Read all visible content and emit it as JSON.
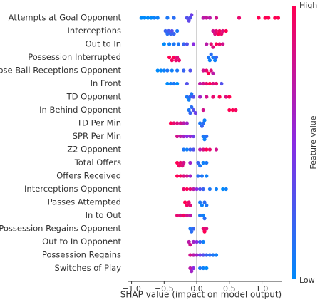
{
  "chart_data": {
    "type": "beeswarm",
    "xlabel": "SHAP value (impact on model output)",
    "xlim": [
      -1.05,
      1.3
    ],
    "xticks": [
      {
        "value": -1.0,
        "label": "−1.0"
      },
      {
        "value": -0.5,
        "label": "−0.5"
      },
      {
        "value": 0.0,
        "label": "0.0"
      },
      0.5,
      {
        "value": 1.0,
        "label": "1.0"
      }
    ],
    "colormap": [
      "#008afb",
      "#8a2be2",
      "#ff0052"
    ],
    "colorbar": {
      "high": "High",
      "low": "Low",
      "label": "Feature value"
    },
    "series": [
      {
        "name": "Attempts at Goal Opponent",
        "values": [
          -0.85,
          -0.8,
          -0.75,
          -0.7,
          -0.65,
          -0.6,
          -0.45,
          -0.35,
          -0.15,
          -0.12,
          -0.1,
          -0.08,
          0.1,
          0.15,
          0.2,
          0.3,
          0.65,
          0.95,
          1.05,
          1.1,
          1.2,
          1.25
        ],
        "feature_values": [
          0,
          0,
          0,
          0,
          0.05,
          0.05,
          0.1,
          0.15,
          0.3,
          0.35,
          0.3,
          0.4,
          0.7,
          0.75,
          0.7,
          0.8,
          0.9,
          1,
          1,
          1,
          1,
          1
        ]
      },
      {
        "name": "Interceptions",
        "values": [
          -0.48,
          -0.45,
          -0.43,
          -0.4,
          -0.38,
          -0.35,
          -0.3,
          0.25,
          0.28,
          0.3,
          0.33,
          0.35,
          0.38,
          0.4,
          0.45
        ],
        "feature_values": [
          0.2,
          0.15,
          0.25,
          0.2,
          0.3,
          0.2,
          0.1,
          0.8,
          0.85,
          0.9,
          1,
          0.95,
          0.9,
          0.85,
          1
        ]
      },
      {
        "name": "Out to In",
        "values": [
          -0.5,
          -0.42,
          -0.35,
          -0.28,
          -0.2,
          -0.15,
          -0.05,
          0.15,
          0.22,
          0.25,
          0.3,
          0.35,
          0.4
        ],
        "feature_values": [
          0,
          0.05,
          0.1,
          0.1,
          0.2,
          0.3,
          0.5,
          0.7,
          0.9,
          0.85,
          1,
          0.9,
          0.8
        ]
      },
      {
        "name": "Possession Interrupted",
        "values": [
          -0.42,
          -0.38,
          -0.35,
          -0.32,
          -0.3,
          -0.27,
          0.18,
          0.2,
          0.22,
          0.25,
          0.28,
          0.3
        ],
        "feature_values": [
          1,
          0.95,
          1,
          0.9,
          0.85,
          0.9,
          0.1,
          0.05,
          0.15,
          0.1,
          0.05,
          0.2
        ]
      },
      {
        "name": "Loose Ball Receptions Opponent",
        "values": [
          -0.6,
          -0.55,
          -0.5,
          -0.45,
          -0.38,
          -0.3,
          -0.2,
          -0.1,
          0.1,
          0.15,
          0.18,
          0.22,
          0.25
        ],
        "feature_values": [
          0,
          0,
          0.05,
          0.1,
          0.05,
          0.1,
          0.2,
          0.3,
          0.8,
          0.9,
          1,
          0.85,
          0.7
        ]
      },
      {
        "name": "In Front",
        "values": [
          -0.45,
          -0.4,
          -0.35,
          -0.3,
          -0.15,
          0.05,
          0.1,
          0.15,
          0.2,
          0.25,
          0.3,
          0.38
        ],
        "feature_values": [
          0,
          0.05,
          0.1,
          0,
          0.3,
          0.7,
          0.8,
          0.9,
          1,
          0.85,
          0.9,
          0.3
        ]
      },
      {
        "name": "TD Opponent",
        "values": [
          -0.15,
          -0.12,
          -0.1,
          -0.08,
          -0.05,
          0.05,
          0.15,
          0.25,
          0.35,
          0.45,
          0.5
        ],
        "feature_values": [
          0.1,
          0.05,
          0.2,
          0.1,
          0.3,
          0.6,
          0.8,
          0.9,
          1,
          0.85,
          1
        ]
      },
      {
        "name": "In Behind Opponent",
        "values": [
          -0.12,
          -0.1,
          -0.08,
          -0.05,
          -0.02,
          0.1,
          0.5,
          0.55,
          0.6
        ],
        "feature_values": [
          0.1,
          0.2,
          0.15,
          0.3,
          0.4,
          0.8,
          1,
          1,
          0.95
        ]
      },
      {
        "name": "TD Per Min",
        "values": [
          -0.4,
          -0.35,
          -0.3,
          -0.25,
          -0.2,
          -0.15,
          0.05,
          0.08,
          0.1,
          0.12
        ],
        "feature_values": [
          1,
          0.9,
          0.85,
          0.8,
          0.7,
          0.6,
          0.1,
          0.2,
          0.15,
          0.05
        ]
      },
      {
        "name": "SPR Per Min",
        "values": [
          -0.3,
          -0.25,
          -0.2,
          -0.15,
          -0.1,
          -0.05,
          0.1,
          0.12,
          0.15
        ],
        "feature_values": [
          0.8,
          0.7,
          0.6,
          0.5,
          0.55,
          0.4,
          0.1,
          0.05,
          0.15
        ]
      },
      {
        "name": "Z2 Opponent",
        "values": [
          -0.2,
          -0.15,
          -0.1,
          -0.05,
          0.05,
          0.1,
          0.15,
          0.2,
          0.3
        ],
        "feature_values": [
          0.1,
          0.05,
          0.2,
          0.3,
          0.7,
          0.85,
          1,
          0.9,
          0.8
        ]
      },
      {
        "name": "Total Offers",
        "values": [
          -0.3,
          -0.27,
          -0.25,
          -0.22,
          -0.2,
          -0.1,
          0.02,
          0.05,
          0.1,
          0.15
        ],
        "feature_values": [
          1,
          0.95,
          0.9,
          0.85,
          0.8,
          0.6,
          0.2,
          0.1,
          0.05,
          0.1
        ]
      },
      {
        "name": "Offers Received",
        "values": [
          -0.3,
          -0.25,
          -0.2,
          -0.15,
          -0.1,
          0.02,
          0.08,
          0.15
        ],
        "feature_values": [
          1,
          0.95,
          0.85,
          0.8,
          0.6,
          0.15,
          0.1,
          0.05
        ]
      },
      {
        "name": "Interceptions Opponent",
        "values": [
          -0.2,
          -0.15,
          -0.1,
          -0.05,
          0,
          0.05,
          0.1,
          0.2,
          0.3,
          0.4,
          0.45
        ],
        "feature_values": [
          0.9,
          1,
          0.85,
          0.7,
          0.5,
          0.3,
          0.2,
          0.1,
          0.05,
          0,
          0.05
        ]
      },
      {
        "name": "Passes Attempted",
        "values": [
          -0.18,
          -0.15,
          -0.12,
          -0.1,
          0.05,
          0.08,
          0.12,
          0.15
        ],
        "feature_values": [
          1,
          0.95,
          0.9,
          0.85,
          0.1,
          0.05,
          0.15,
          0.1
        ]
      },
      {
        "name": "In to Out",
        "values": [
          -0.3,
          -0.25,
          -0.2,
          -0.15,
          -0.1,
          0.05,
          0.1,
          0.12
        ],
        "feature_values": [
          0.9,
          0.85,
          0.95,
          0.8,
          0.7,
          0.1,
          0.05,
          0.15
        ]
      },
      {
        "name": "Possession Regains Opponent",
        "values": [
          -0.1,
          -0.08,
          -0.05,
          0.1,
          0.12,
          0.15
        ],
        "feature_values": [
          0.1,
          0.15,
          0.2,
          0.9,
          1,
          0.85
        ]
      },
      {
        "name": "Out to In Opponent",
        "values": [
          -0.12,
          -0.1,
          -0.05,
          0,
          0.05,
          0.1
        ],
        "feature_values": [
          0.7,
          0.8,
          0.6,
          0.5,
          0.2,
          0.05
        ]
      },
      {
        "name": "Possession Regains",
        "values": [
          -0.1,
          -0.05,
          0,
          0.05,
          0.1,
          0.15,
          0.2,
          0.25,
          0.3
        ],
        "feature_values": [
          0.8,
          0.7,
          0.6,
          0.4,
          0.3,
          0.2,
          0.15,
          0.1,
          0.05
        ]
      },
      {
        "name": "Switches of Play",
        "values": [
          -0.1,
          -0.08,
          -0.05,
          0.05,
          0.1,
          0.15
        ],
        "feature_values": [
          0.7,
          0.6,
          0.5,
          0.1,
          0.05,
          0
        ]
      }
    ]
  }
}
